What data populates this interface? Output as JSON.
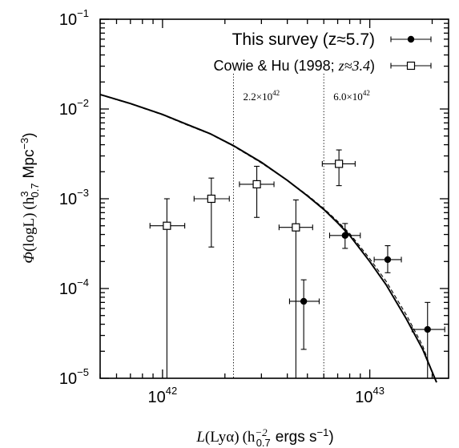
{
  "chart_data": {
    "type": "scatter",
    "xscale": "log",
    "yscale": "log",
    "xlim": [
      5e+41,
      2.4e+43
    ],
    "ylim": [
      1e-05,
      0.1
    ],
    "x_ticks": [
      {
        "value": 1e+42,
        "base": "10",
        "exp": "42"
      },
      {
        "value": 1e+43,
        "base": "10",
        "exp": "43"
      }
    ],
    "y_ticks": [
      {
        "value": 0.1,
        "base": "10",
        "exp": "−1"
      },
      {
        "value": 0.01,
        "base": "10",
        "exp": "−2"
      },
      {
        "value": 0.001,
        "base": "10",
        "exp": "−3"
      },
      {
        "value": 0.0001,
        "base": "10",
        "exp": "−4"
      },
      {
        "value": 1e-05,
        "base": "10",
        "exp": "−5"
      }
    ],
    "xlabel": {
      "L": "L",
      "lya": "(Lyα)",
      "h": "(h",
      "h_sub": "0.7",
      "h_sup": "−2",
      "units": "ergs s",
      "units_sup": "−1",
      "close": ")"
    },
    "ylabel": {
      "phi": "Φ",
      "logl": "(logL)",
      "h": "(h",
      "h_sub": "0.7",
      "h_sup": "3",
      "units": "Mpc",
      "units_sup": "−3",
      "close": ")"
    },
    "vlines": [
      {
        "x": 2.2e+42,
        "label_base": "2.2×10",
        "label_exp": "42"
      },
      {
        "x": 6e+42,
        "label_base": "6.0×10",
        "label_exp": "42"
      }
    ],
    "legend": {
      "placement": "top-right",
      "entries": [
        {
          "label": "This survey (z≈5.7)",
          "marker": "filled-circle"
        },
        {
          "label_prefix": "Cowie & Hu (1998; ",
          "label_z": "z≈3.4",
          "label_suffix": ")",
          "marker": "open-square"
        }
      ]
    },
    "series": [
      {
        "name": "This survey (z≈5.7)",
        "marker": "filled-circle",
        "points": [
          {
            "x": 4.8e+42,
            "y": 7.2e-05,
            "xerr": [
              4.1e+42,
              5.7e+42
            ],
            "yerr": [
              2.1e-05,
              0.000125
            ]
          },
          {
            "x": 7.6e+42,
            "y": 0.00039,
            "xerr": [
              6.4e+42,
              9e+42
            ],
            "yerr": [
              0.00028,
              0.00053
            ]
          },
          {
            "x": 1.22e+43,
            "y": 0.00021,
            "xerr": [
              1.05e+43,
              1.42e+43
            ],
            "yerr": [
              0.00015,
              0.0003
            ]
          },
          {
            "x": 1.9e+43,
            "y": 3.5e-05,
            "xerr": [
              1.6e+43,
              2.3e+43
            ],
            "yerr": [
              1e-05,
              7e-05
            ]
          }
        ]
      },
      {
        "name": "Cowie & Hu (1998; z≈3.4)",
        "marker": "open-square",
        "points": [
          {
            "x": 1.05e+42,
            "y": 0.0005,
            "xerr": [
              8.7e+41,
              1.28e+42
            ],
            "yerr": [
              1e-05,
              0.001
            ]
          },
          {
            "x": 1.72e+42,
            "y": 0.001,
            "xerr": [
              1.42e+42,
              2.1e+42
            ],
            "yerr": [
              0.00029,
              0.0017
            ]
          },
          {
            "x": 2.85e+42,
            "y": 0.00145,
            "xerr": [
              2.35e+42,
              3.45e+42
            ],
            "yerr": [
              0.00062,
              0.0023
            ]
          },
          {
            "x": 4.4e+42,
            "y": 0.00048,
            "xerr": [
              3.65e+42,
              5.3e+42
            ],
            "yerr": [
              1e-05,
              0.00097
            ]
          },
          {
            "x": 7.1e+42,
            "y": 0.00245,
            "xerr": [
              5.9e+42,
              8.5e+42
            ],
            "yerr": [
              0.0014,
              0.0035
            ]
          }
        ]
      }
    ],
    "curves": [
      {
        "style": "solid",
        "points": [
          [
            5e+41,
            0.0145
          ],
          [
            7e+41,
            0.0115
          ],
          [
            1e+42,
            0.0087
          ],
          [
            1.3e+42,
            0.0068
          ],
          [
            1.7e+42,
            0.0053
          ],
          [
            2.2e+42,
            0.0039
          ],
          [
            3e+42,
            0.00255
          ],
          [
            4e+42,
            0.0016
          ],
          [
            5e+42,
            0.00108
          ],
          [
            6e+42,
            0.00076
          ],
          [
            7e+42,
            0.00054
          ],
          [
            8e+42,
            0.00039
          ],
          [
            1e+43,
            0.0002
          ],
          [
            1.2e+43,
            0.00011
          ],
          [
            1.5e+43,
            4.6e-05
          ],
          [
            1.8e+43,
            2.1e-05
          ],
          [
            2.1e+43,
            9e-06
          ]
        ]
      },
      {
        "style": "dashed",
        "points": [
          [
            5e+41,
            0.0144
          ],
          [
            7e+41,
            0.0114
          ],
          [
            1e+42,
            0.0086
          ],
          [
            1.3e+42,
            0.0067
          ],
          [
            1.7e+42,
            0.00525
          ],
          [
            2.2e+42,
            0.00385
          ],
          [
            3e+42,
            0.0025
          ],
          [
            4e+42,
            0.0016
          ],
          [
            5e+42,
            0.0011
          ],
          [
            6e+42,
            0.00078
          ],
          [
            7e+42,
            0.00056
          ],
          [
            8e+42,
            0.00041
          ],
          [
            1e+43,
            0.000215
          ],
          [
            1.2e+43,
            0.00012
          ],
          [
            1.5e+43,
            5.1e-05
          ],
          [
            1.8e+43,
            2.3e-05
          ],
          [
            2.05e+43,
            1e-05
          ]
        ]
      }
    ]
  }
}
